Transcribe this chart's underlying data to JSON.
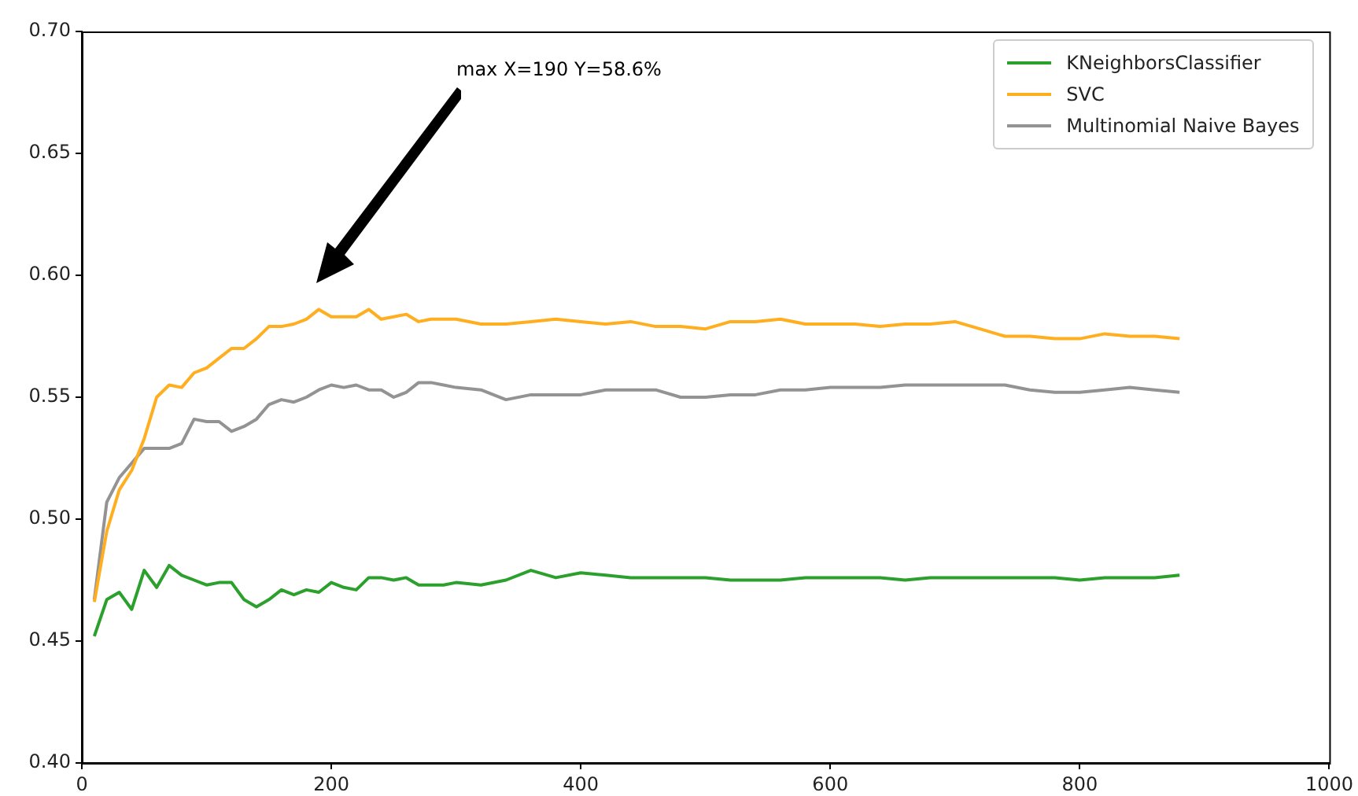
{
  "chart_data": {
    "type": "line",
    "x": [
      10,
      20,
      30,
      40,
      50,
      60,
      70,
      80,
      90,
      100,
      110,
      120,
      130,
      140,
      150,
      160,
      170,
      180,
      190,
      200,
      210,
      220,
      230,
      240,
      250,
      260,
      270,
      280,
      290,
      300,
      320,
      340,
      360,
      380,
      400,
      420,
      440,
      460,
      480,
      500,
      520,
      540,
      560,
      580,
      600,
      620,
      640,
      660,
      680,
      700,
      720,
      740,
      760,
      780,
      800,
      820,
      840,
      860,
      880
    ],
    "series": [
      {
        "name": "KNeighborsClassifier",
        "color": "#2ca02c",
        "values": [
          0.452,
          0.467,
          0.47,
          0.463,
          0.479,
          0.472,
          0.481,
          0.477,
          0.475,
          0.473,
          0.474,
          0.474,
          0.467,
          0.464,
          0.467,
          0.471,
          0.469,
          0.471,
          0.47,
          0.474,
          0.472,
          0.471,
          0.476,
          0.476,
          0.475,
          0.476,
          0.473,
          0.473,
          0.473,
          0.474,
          0.473,
          0.475,
          0.479,
          0.476,
          0.478,
          0.477,
          0.476,
          0.476,
          0.476,
          0.476,
          0.475,
          0.475,
          0.475,
          0.476,
          0.476,
          0.476,
          0.476,
          0.475,
          0.476,
          0.476,
          0.476,
          0.476,
          0.476,
          0.476,
          0.475,
          0.476,
          0.476,
          0.476,
          0.477
        ]
      },
      {
        "name": "SVC",
        "color": "#ffae1f",
        "values": [
          0.466,
          0.495,
          0.512,
          0.52,
          0.533,
          0.55,
          0.555,
          0.554,
          0.56,
          0.562,
          0.566,
          0.57,
          0.57,
          0.574,
          0.579,
          0.579,
          0.58,
          0.582,
          0.586,
          0.583,
          0.583,
          0.583,
          0.586,
          0.582,
          0.583,
          0.584,
          0.581,
          0.582,
          0.582,
          0.582,
          0.58,
          0.58,
          0.581,
          0.582,
          0.581,
          0.58,
          0.581,
          0.579,
          0.579,
          0.578,
          0.581,
          0.581,
          0.582,
          0.58,
          0.58,
          0.58,
          0.579,
          0.58,
          0.58,
          0.581,
          0.578,
          0.575,
          0.575,
          0.574,
          0.574,
          0.576,
          0.575,
          0.575,
          0.574
        ]
      },
      {
        "name": "Multinomial Naive Bayes",
        "color": "#939393",
        "values": [
          0.467,
          0.507,
          0.517,
          0.523,
          0.529,
          0.529,
          0.529,
          0.531,
          0.541,
          0.54,
          0.54,
          0.536,
          0.538,
          0.541,
          0.547,
          0.549,
          0.548,
          0.55,
          0.553,
          0.555,
          0.554,
          0.555,
          0.553,
          0.553,
          0.55,
          0.552,
          0.556,
          0.556,
          0.555,
          0.554,
          0.553,
          0.549,
          0.551,
          0.551,
          0.551,
          0.553,
          0.553,
          0.553,
          0.55,
          0.55,
          0.551,
          0.551,
          0.553,
          0.553,
          0.554,
          0.554,
          0.554,
          0.555,
          0.555,
          0.555,
          0.555,
          0.555,
          0.553,
          0.552,
          0.552,
          0.553,
          0.554,
          0.553,
          0.552
        ]
      }
    ],
    "xlim": [
      0,
      1000
    ],
    "xticks": [
      0,
      200,
      400,
      600,
      800,
      1000
    ],
    "ylim": [
      0.4,
      0.7
    ],
    "yticks": [
      {
        "value": 0.4,
        "label": "0.40"
      },
      0.45,
      {
        "value": 0.5,
        "label": "0.50"
      },
      0.55,
      {
        "value": 0.6,
        "label": "0.60"
      },
      0.65,
      {
        "value": 0.7,
        "label": "0.70"
      }
    ],
    "annotations": [
      "max X=190 Y=58.6%"
    ],
    "legend": "top right",
    "grid": false,
    "marker": "none",
    "line_style": "solid"
  }
}
